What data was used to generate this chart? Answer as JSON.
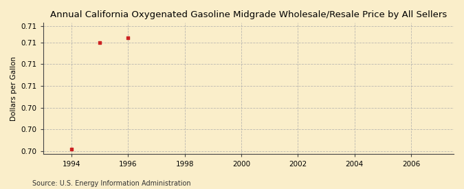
{
  "title": "Annual California Oxygenated Gasoline Midgrade Wholesale/Resale Price by All Sellers",
  "ylabel": "Dollars per Gallon",
  "source_text": "Source: U.S. Energy Information Administration",
  "x_data": [
    1994,
    1995,
    1996
  ],
  "y_data": [
    0.7002,
    0.71,
    0.7104
  ],
  "xlim": [
    1993.0,
    2007.5
  ],
  "ylim": [
    0.6997,
    0.7118
  ],
  "xticks": [
    1994,
    1996,
    1998,
    2000,
    2002,
    2004,
    2006
  ],
  "ytick_positions": [
    0.7,
    0.702,
    0.704,
    0.706,
    0.708,
    0.71,
    0.7115
  ],
  "ytick_labels": [
    "0.70",
    "0.70",
    "0.70",
    "0.71",
    "0.71",
    "0.71",
    "0.71"
  ],
  "marker_color": "#cc2222",
  "background_color": "#faeeca",
  "grid_color": "#aaaaaa",
  "title_fontsize": 9.5,
  "label_fontsize": 7.5,
  "tick_fontsize": 7.5,
  "source_fontsize": 7
}
